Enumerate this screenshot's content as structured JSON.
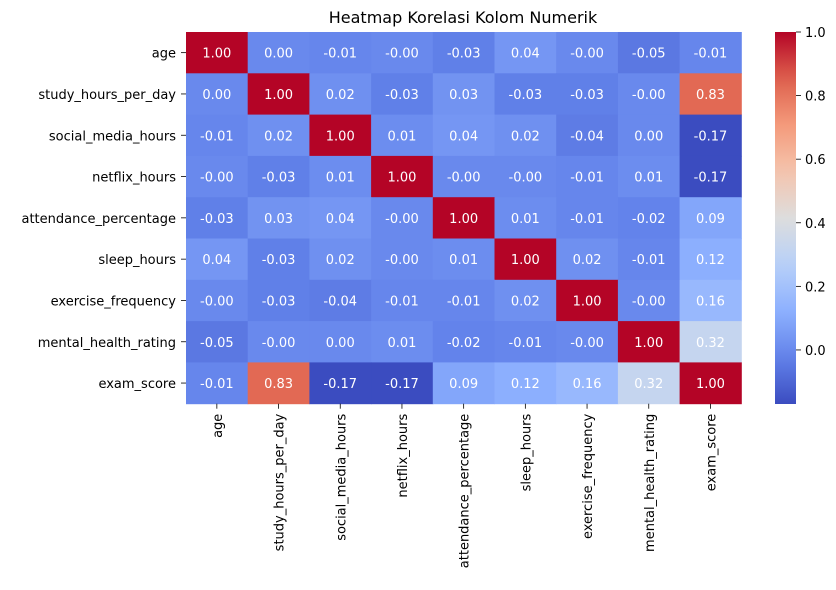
{
  "chart_data": {
    "type": "heatmap",
    "title": "Heatmap Korelasi Kolom Numerik",
    "xlabel": "",
    "ylabel": "",
    "colormap": "coolwarm",
    "vmin": -0.17,
    "vmax": 1.0,
    "colorbar_ticks": [
      "1.0",
      "0.8",
      "0.6",
      "0.4",
      "0.2",
      "0.0"
    ],
    "colorbar_tick_values": [
      1.0,
      0.8,
      0.6,
      0.4,
      0.2,
      0.0
    ],
    "rows": [
      "age",
      "study_hours_per_day",
      "social_media_hours",
      "netflix_hours",
      "attendance_percentage",
      "sleep_hours",
      "exercise_frequency",
      "mental_health_rating",
      "exam_score"
    ],
    "columns": [
      "age",
      "study_hours_per_day",
      "social_media_hours",
      "netflix_hours",
      "attendance_percentage",
      "sleep_hours",
      "exercise_frequency",
      "mental_health_rating",
      "exam_score"
    ],
    "values": [
      [
        1.0,
        0.0,
        -0.01,
        -0.0,
        -0.03,
        0.04,
        -0.0,
        -0.05,
        -0.01
      ],
      [
        0.0,
        1.0,
        0.02,
        -0.03,
        0.03,
        -0.03,
        -0.03,
        -0.0,
        0.83
      ],
      [
        -0.01,
        0.02,
        1.0,
        0.01,
        0.04,
        0.02,
        -0.04,
        0.0,
        -0.17
      ],
      [
        -0.0,
        -0.03,
        0.01,
        1.0,
        -0.0,
        -0.0,
        -0.01,
        0.01,
        -0.17
      ],
      [
        -0.03,
        0.03,
        0.04,
        -0.0,
        1.0,
        0.01,
        -0.01,
        -0.02,
        0.09
      ],
      [
        0.04,
        -0.03,
        0.02,
        -0.0,
        0.01,
        1.0,
        0.02,
        -0.01,
        0.12
      ],
      [
        -0.0,
        -0.03,
        -0.04,
        -0.01,
        -0.01,
        0.02,
        1.0,
        -0.0,
        0.16
      ],
      [
        -0.05,
        -0.0,
        0.0,
        0.01,
        -0.02,
        -0.01,
        -0.0,
        1.0,
        0.32
      ],
      [
        -0.01,
        0.83,
        -0.17,
        -0.17,
        0.09,
        0.12,
        0.16,
        0.32,
        1.0
      ]
    ],
    "labels": [
      [
        "1.00",
        "0.00",
        "-0.01",
        "-0.00",
        "-0.03",
        "0.04",
        "-0.00",
        "-0.05",
        "-0.01"
      ],
      [
        "0.00",
        "1.00",
        "0.02",
        "-0.03",
        "0.03",
        "-0.03",
        "-0.03",
        "-0.00",
        "0.83"
      ],
      [
        "-0.01",
        "0.02",
        "1.00",
        "0.01",
        "0.04",
        "0.02",
        "-0.04",
        "0.00",
        "-0.17"
      ],
      [
        "-0.00",
        "-0.03",
        "0.01",
        "1.00",
        "-0.00",
        "-0.00",
        "-0.01",
        "0.01",
        "-0.17"
      ],
      [
        "-0.03",
        "0.03",
        "0.04",
        "-0.00",
        "1.00",
        "0.01",
        "-0.01",
        "-0.02",
        "0.09"
      ],
      [
        "0.04",
        "-0.03",
        "0.02",
        "-0.00",
        "0.01",
        "1.00",
        "0.02",
        "-0.01",
        "0.12"
      ],
      [
        "-0.00",
        "-0.03",
        "-0.04",
        "-0.01",
        "-0.01",
        "0.02",
        "1.00",
        "-0.00",
        "0.16"
      ],
      [
        "-0.05",
        "-0.00",
        "0.00",
        "0.01",
        "-0.02",
        "-0.01",
        "-0.00",
        "1.00",
        "0.32"
      ],
      [
        "-0.01",
        "0.83",
        "-0.17",
        "-0.17",
        "0.09",
        "0.12",
        "0.16",
        "0.32",
        "1.00"
      ]
    ],
    "legend": "colorbar-right",
    "grid": false
  }
}
